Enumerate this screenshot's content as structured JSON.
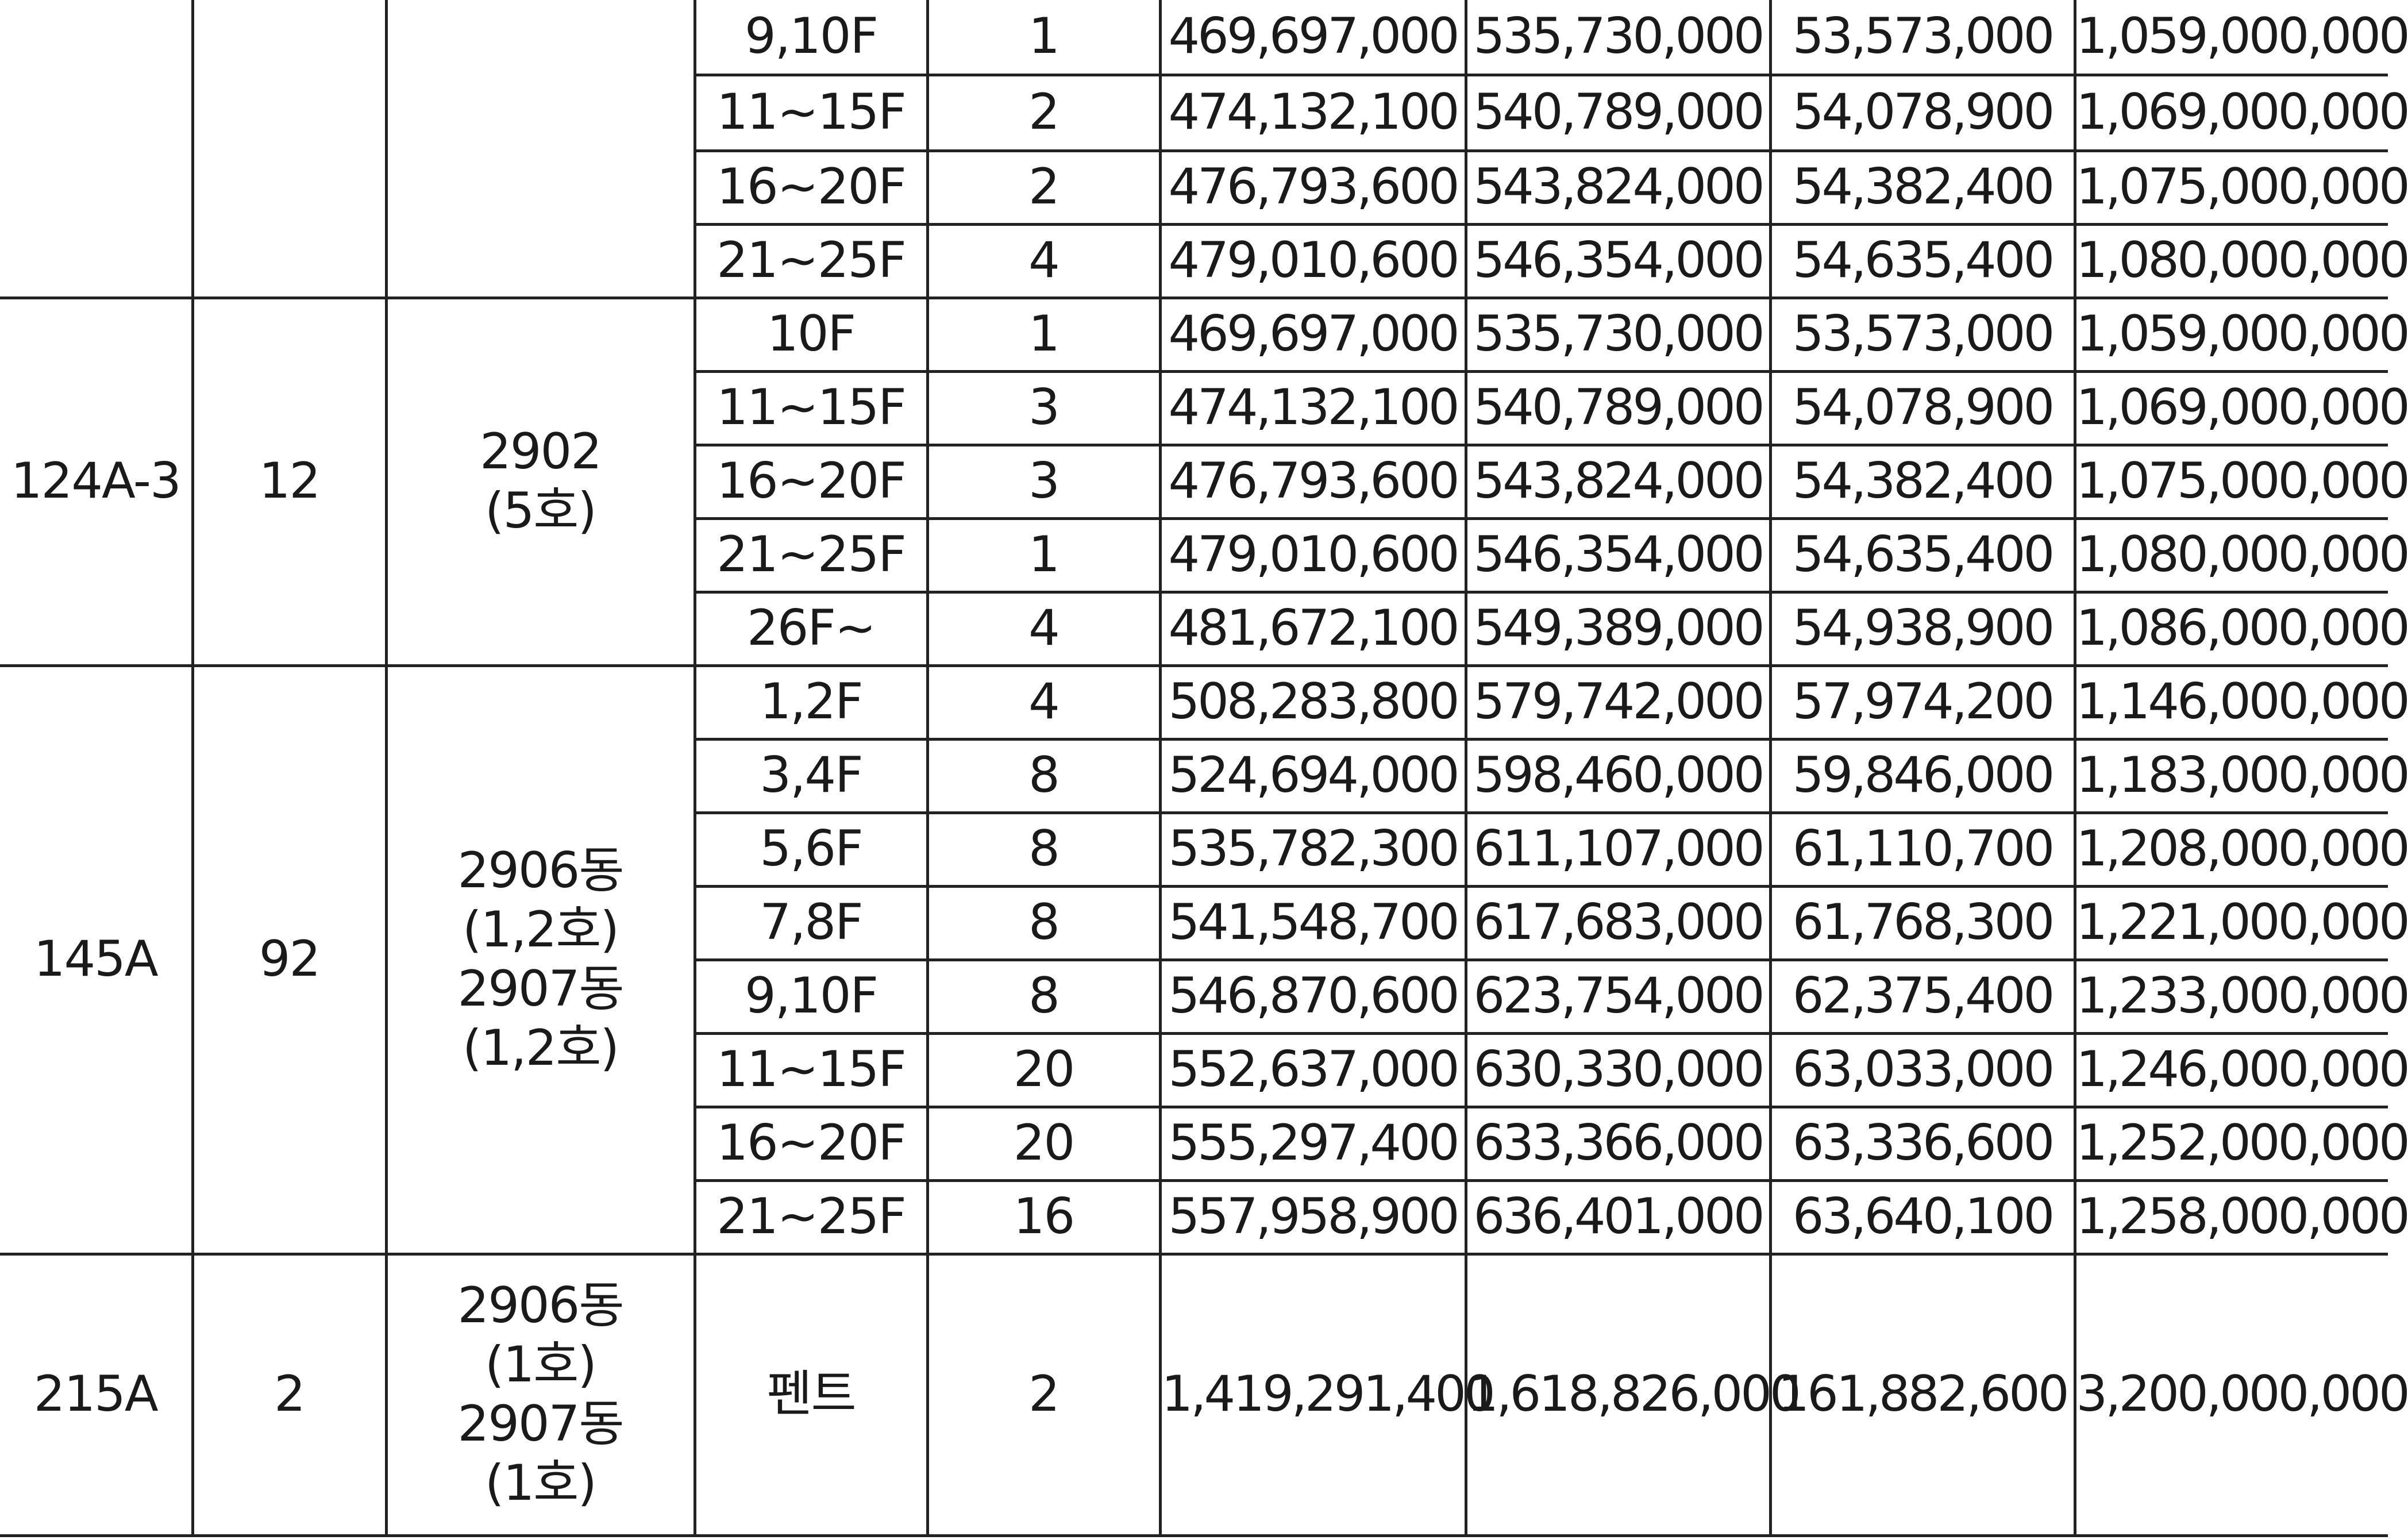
{
  "groups": [
    {
      "type": "",
      "count": "",
      "location_lines": [],
      "rows": [
        {
          "floor": "9,10F",
          "units": "1",
          "land": "469,697,000",
          "building": "535,730,000",
          "vat": "53,573,000",
          "total": "1,059,000,000"
        },
        {
          "floor": "11~15F",
          "units": "2",
          "land": "474,132,100",
          "building": "540,789,000",
          "vat": "54,078,900",
          "total": "1,069,000,000"
        },
        {
          "floor": "16~20F",
          "units": "2",
          "land": "476,793,600",
          "building": "543,824,000",
          "vat": "54,382,400",
          "total": "1,075,000,000"
        },
        {
          "floor": "21~25F",
          "units": "4",
          "land": "479,010,600",
          "building": "546,354,000",
          "vat": "54,635,400",
          "total": "1,080,000,000"
        }
      ]
    },
    {
      "type": "124A-3",
      "count": "12",
      "location_lines": [
        "2902",
        "(5호)"
      ],
      "rows": [
        {
          "floor": "10F",
          "units": "1",
          "land": "469,697,000",
          "building": "535,730,000",
          "vat": "53,573,000",
          "total": "1,059,000,000"
        },
        {
          "floor": "11~15F",
          "units": "3",
          "land": "474,132,100",
          "building": "540,789,000",
          "vat": "54,078,900",
          "total": "1,069,000,000"
        },
        {
          "floor": "16~20F",
          "units": "3",
          "land": "476,793,600",
          "building": "543,824,000",
          "vat": "54,382,400",
          "total": "1,075,000,000"
        },
        {
          "floor": "21~25F",
          "units": "1",
          "land": "479,010,600",
          "building": "546,354,000",
          "vat": "54,635,400",
          "total": "1,080,000,000"
        },
        {
          "floor": "26F~",
          "units": "4",
          "land": "481,672,100",
          "building": "549,389,000",
          "vat": "54,938,900",
          "total": "1,086,000,000"
        }
      ]
    },
    {
      "type": "145A",
      "count": "92",
      "location_lines": [
        "2906동",
        "(1,2호)",
        "2907동",
        "(1,2호)"
      ],
      "rows": [
        {
          "floor": "1,2F",
          "units": "4",
          "land": "508,283,800",
          "building": "579,742,000",
          "vat": "57,974,200",
          "total": "1,146,000,000"
        },
        {
          "floor": "3,4F",
          "units": "8",
          "land": "524,694,000",
          "building": "598,460,000",
          "vat": "59,846,000",
          "total": "1,183,000,000"
        },
        {
          "floor": "5,6F",
          "units": "8",
          "land": "535,782,300",
          "building": "611,107,000",
          "vat": "61,110,700",
          "total": "1,208,000,000"
        },
        {
          "floor": "7,8F",
          "units": "8",
          "land": "541,548,700",
          "building": "617,683,000",
          "vat": "61,768,300",
          "total": "1,221,000,000"
        },
        {
          "floor": "9,10F",
          "units": "8",
          "land": "546,870,600",
          "building": "623,754,000",
          "vat": "62,375,400",
          "total": "1,233,000,000"
        },
        {
          "floor": "11~15F",
          "units": "20",
          "land": "552,637,000",
          "building": "630,330,000",
          "vat": "63,033,000",
          "total": "1,246,000,000"
        },
        {
          "floor": "16~20F",
          "units": "20",
          "land": "555,297,400",
          "building": "633,366,000",
          "vat": "63,336,600",
          "total": "1,252,000,000"
        },
        {
          "floor": "21~25F",
          "units": "16",
          "land": "557,958,900",
          "building": "636,401,000",
          "vat": "63,640,100",
          "total": "1,258,000,000"
        }
      ]
    },
    {
      "type": "215A",
      "count": "2",
      "location_lines": [
        "2906동",
        "(1호)",
        "2907동",
        "(1호)"
      ],
      "rows": [
        {
          "floor": "펜트",
          "units": "2",
          "land": "1,419,291,400",
          "building": "1,618,826,000",
          "vat": "161,882,600",
          "total": "3,200,000,000"
        }
      ]
    }
  ]
}
